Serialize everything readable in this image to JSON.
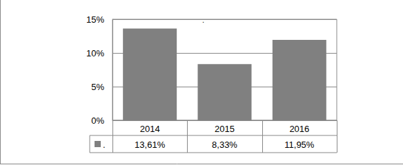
{
  "chart_data": {
    "type": "bar",
    "title": ".",
    "categories": [
      "2014",
      "2015",
      "2016"
    ],
    "series": [
      {
        "name": ".",
        "color": "#808080",
        "values": [
          13.61,
          8.33,
          11.95
        ],
        "value_labels": [
          "13,61%",
          "8,33%",
          "11,95%"
        ]
      }
    ],
    "ylim": [
      0,
      15
    ],
    "yticks": [
      {
        "value": 0,
        "label": "0%"
      },
      {
        "value": 5,
        "label": "5%"
      },
      {
        "value": 10,
        "label": "10%"
      },
      {
        "value": 15,
        "label": "15%"
      }
    ],
    "grid": true
  }
}
